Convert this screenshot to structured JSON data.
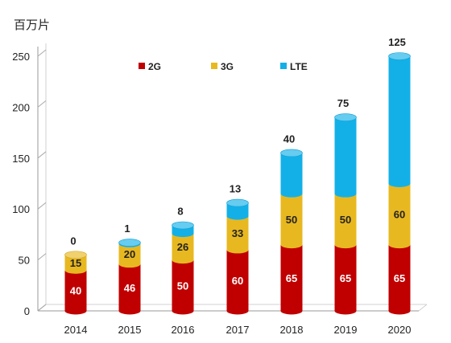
{
  "chart_data": {
    "type": "bar",
    "stacked": true,
    "three_d": true,
    "unit_label": "百万片",
    "categories": [
      "2014",
      "2015",
      "2016",
      "2017",
      "2018",
      "2019",
      "2020"
    ],
    "series": [
      {
        "name": "2G",
        "color": "#c00000",
        "values": [
          40,
          46,
          50,
          60,
          65,
          65,
          65
        ]
      },
      {
        "name": "3G",
        "color": "#e8b820",
        "values": [
          15,
          20,
          26,
          33,
          50,
          50,
          60
        ]
      },
      {
        "name": "LTE",
        "color": "#13b0e8",
        "values": [
          0,
          1,
          8,
          13,
          40,
          75,
          125
        ]
      }
    ],
    "top_labels": [
      "0",
      "1",
      "8",
      "13",
      "40",
      "75",
      "125"
    ],
    "yticks": [
      0,
      50,
      100,
      150,
      200,
      250
    ],
    "ylim": [
      0,
      250
    ],
    "legend_position": "top-left",
    "grid": false
  }
}
